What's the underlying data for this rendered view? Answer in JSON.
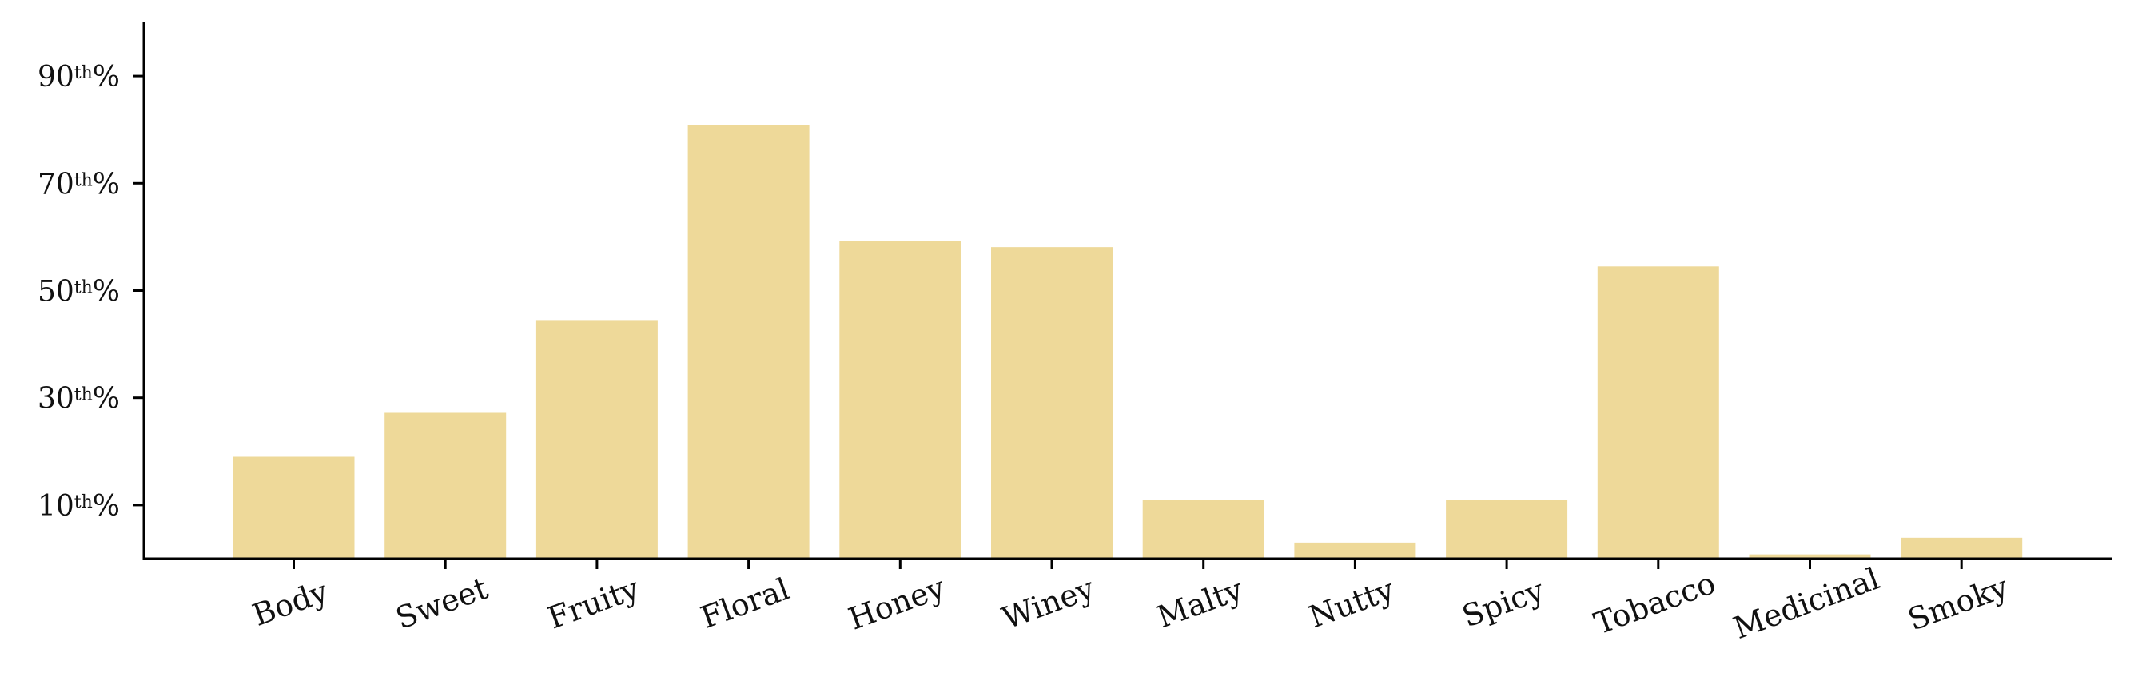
{
  "chart_data": {
    "type": "bar",
    "title": "",
    "xlabel": "",
    "ylabel": "",
    "categories": [
      "Body",
      "Sweet",
      "Fruity",
      "Floral",
      "Honey",
      "Winey",
      "Malty",
      "Nutty",
      "Spicy",
      "Tobacco",
      "Medicinal",
      "Smoky"
    ],
    "values": [
      19,
      27.2,
      44.5,
      80.8,
      59.3,
      58.1,
      11,
      3,
      11,
      54.5,
      0.8,
      3.9
    ],
    "ylim": [
      0,
      100
    ],
    "yticks": [
      {
        "value": 10,
        "num": "10",
        "sup": "th",
        "suffix": "%"
      },
      {
        "value": 30,
        "num": "30",
        "sup": "th",
        "suffix": "%"
      },
      {
        "value": 50,
        "num": "50",
        "sup": "th",
        "suffix": "%"
      },
      {
        "value": 70,
        "num": "70",
        "sup": "th",
        "suffix": "%"
      },
      {
        "value": 90,
        "num": "90",
        "sup": "th",
        "suffix": "%"
      }
    ],
    "bar_color": "#eed999",
    "grid": false,
    "legend": "none"
  }
}
